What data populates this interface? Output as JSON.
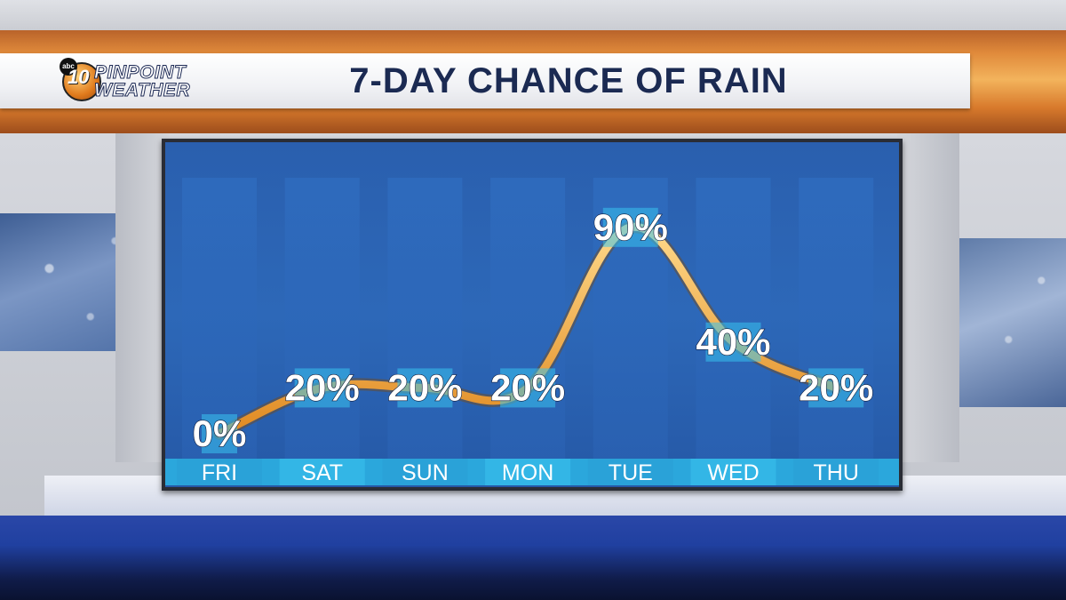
{
  "branding": {
    "network": "abc",
    "channel": "10",
    "line1": "PINPOINT",
    "line2": "WEATHER"
  },
  "title": "7-DAY CHANCE OF RAIN",
  "colors": {
    "accent_orange": "#f0a040",
    "title_text": "#1b2a52",
    "panel_blue": "#2a5fae",
    "label_box": "#2bb6e8"
  },
  "chart_data": {
    "type": "line",
    "title": "7-DAY CHANCE OF RAIN",
    "categories": [
      "FRI",
      "SAT",
      "SUN",
      "MON",
      "TUE",
      "WED",
      "THU"
    ],
    "values": [
      0,
      20,
      20,
      20,
      90,
      40,
      20
    ],
    "value_labels": [
      "0%",
      "20%",
      "20%",
      "20%",
      "90%",
      "40%",
      "20%"
    ],
    "unit": "%",
    "ylim": [
      0,
      100
    ],
    "grid": false,
    "legend": "none"
  }
}
